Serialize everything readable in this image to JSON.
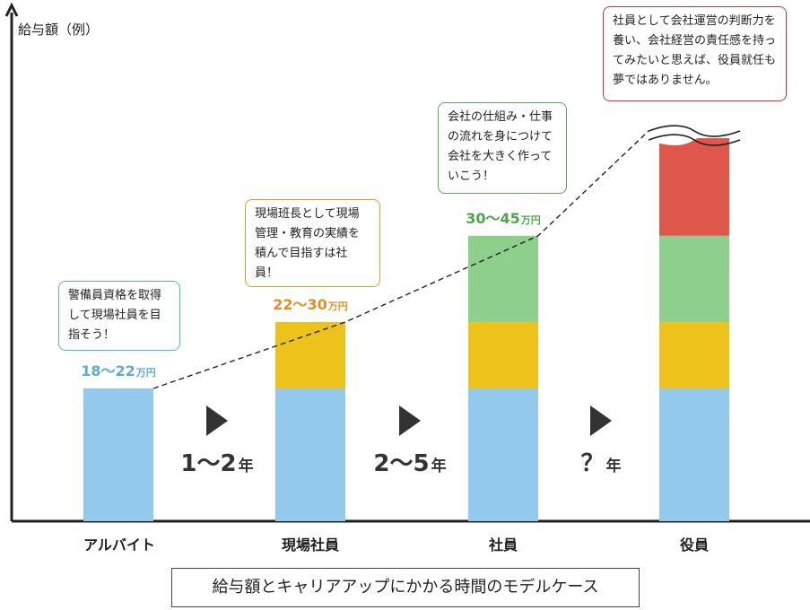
{
  "chart_data": {
    "type": "bar",
    "title": "",
    "ylabel": "給与額（例）",
    "categories": [
      "アルバイト",
      "現場社員",
      "社員",
      "役員"
    ],
    "value_labels": [
      {
        "low": "18〜22",
        "unit": "万円"
      },
      {
        "low": "22〜30",
        "unit": "万円"
      },
      {
        "low": "30〜45",
        "unit": "万円"
      }
    ],
    "stacks": [
      [
        {
          "level": "base",
          "value": 20
        }
      ],
      [
        {
          "level": "base",
          "value": 20
        },
        {
          "level": "mid",
          "value": 10
        }
      ],
      [
        {
          "level": "base",
          "value": 20
        },
        {
          "level": "mid",
          "value": 10
        },
        {
          "level": "upper",
          "value": 13
        }
      ],
      [
        {
          "level": "base",
          "value": 20
        },
        {
          "level": "mid",
          "value": 10
        },
        {
          "level": "upper",
          "value": 13
        },
        {
          "level": "top",
          "value": 15
        }
      ]
    ],
    "colors": {
      "base": "#92c9ec",
      "mid": "#edc21b",
      "upper": "#8ecf8e",
      "top": "#df564a"
    },
    "top_bar_broken": true,
    "steps": [
      {
        "num": "1〜2",
        "unit": "年"
      },
      {
        "num": "2〜5",
        "unit": "年"
      },
      {
        "num": "？",
        "unit": "年"
      }
    ]
  },
  "callouts": [
    {
      "text": "警備員資格を取得して現場社員を目指そう！",
      "border": "#5ea9dc"
    },
    {
      "text": "現場班長として現場管理・教育の実績を積んで目指すは社員！",
      "border": "#e0a028"
    },
    {
      "text": "会社の仕組み・仕事の流れを身につけて会社を大きく作っていこう！",
      "border": "#5aa85a"
    },
    {
      "text": "社員として会社運営の判断力を養い、会社経営の責任感を持ってみたいと思えば、役員就任も夢ではありません。",
      "border": "#cc3333"
    }
  ],
  "label_colors": [
    "#5ea9dc",
    "#e09020",
    "#4aa84a"
  ],
  "caption": "給与額とキャリアアップにかかる時間のモデルケース"
}
